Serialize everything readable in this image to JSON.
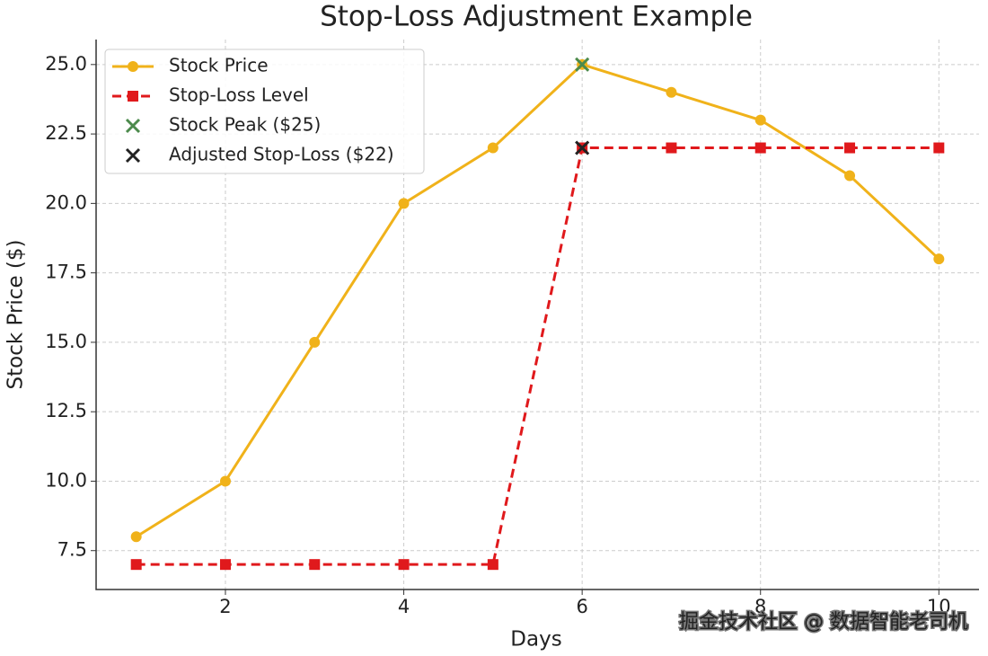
{
  "chart_data": {
    "type": "line",
    "title": "Stop-Loss Adjustment Example",
    "x_label": "Days",
    "y_label": "Stock Price ($)",
    "x": [
      1,
      2,
      3,
      4,
      5,
      6,
      7,
      8,
      9,
      10
    ],
    "series": [
      {
        "name": "Stock Price",
        "color": "#f0b21a",
        "marker": "circle",
        "linestyle": "solid",
        "values": [
          8,
          10,
          15,
          20,
          22,
          25,
          24,
          23,
          21,
          18
        ]
      },
      {
        "name": "Stop-Loss Level",
        "color": "#e0191c",
        "marker": "square",
        "linestyle": "dashed",
        "values": [
          7,
          7,
          7,
          7,
          7,
          22,
          22,
          22,
          22,
          22
        ]
      },
      {
        "name": "Stock Peak ($25)",
        "color": "#4c8a4c",
        "type": "scatter",
        "marker": "x",
        "x": [
          6
        ],
        "values": [
          25
        ]
      },
      {
        "name": "Adjusted Stop-Loss ($22)",
        "color": "#222222",
        "type": "scatter",
        "marker": "x",
        "x": [
          6
        ],
        "values": [
          22
        ]
      }
    ],
    "xlim": [
      0.55,
      10.45
    ],
    "xticks": [
      2,
      4,
      6,
      8,
      10
    ],
    "ylim": [
      6.1,
      25.9
    ],
    "yticks": [
      7.5,
      {
        "value": 10,
        "label": "10.0"
      },
      12.5,
      {
        "value": 15,
        "label": "15.0"
      },
      17.5,
      {
        "value": 20,
        "label": "20.0"
      },
      22.5,
      {
        "value": 25,
        "label": "25.0"
      }
    ],
    "grid": true,
    "legend": "upper-left"
  },
  "watermark": "掘金技术社区 @ 数据智能老司机"
}
